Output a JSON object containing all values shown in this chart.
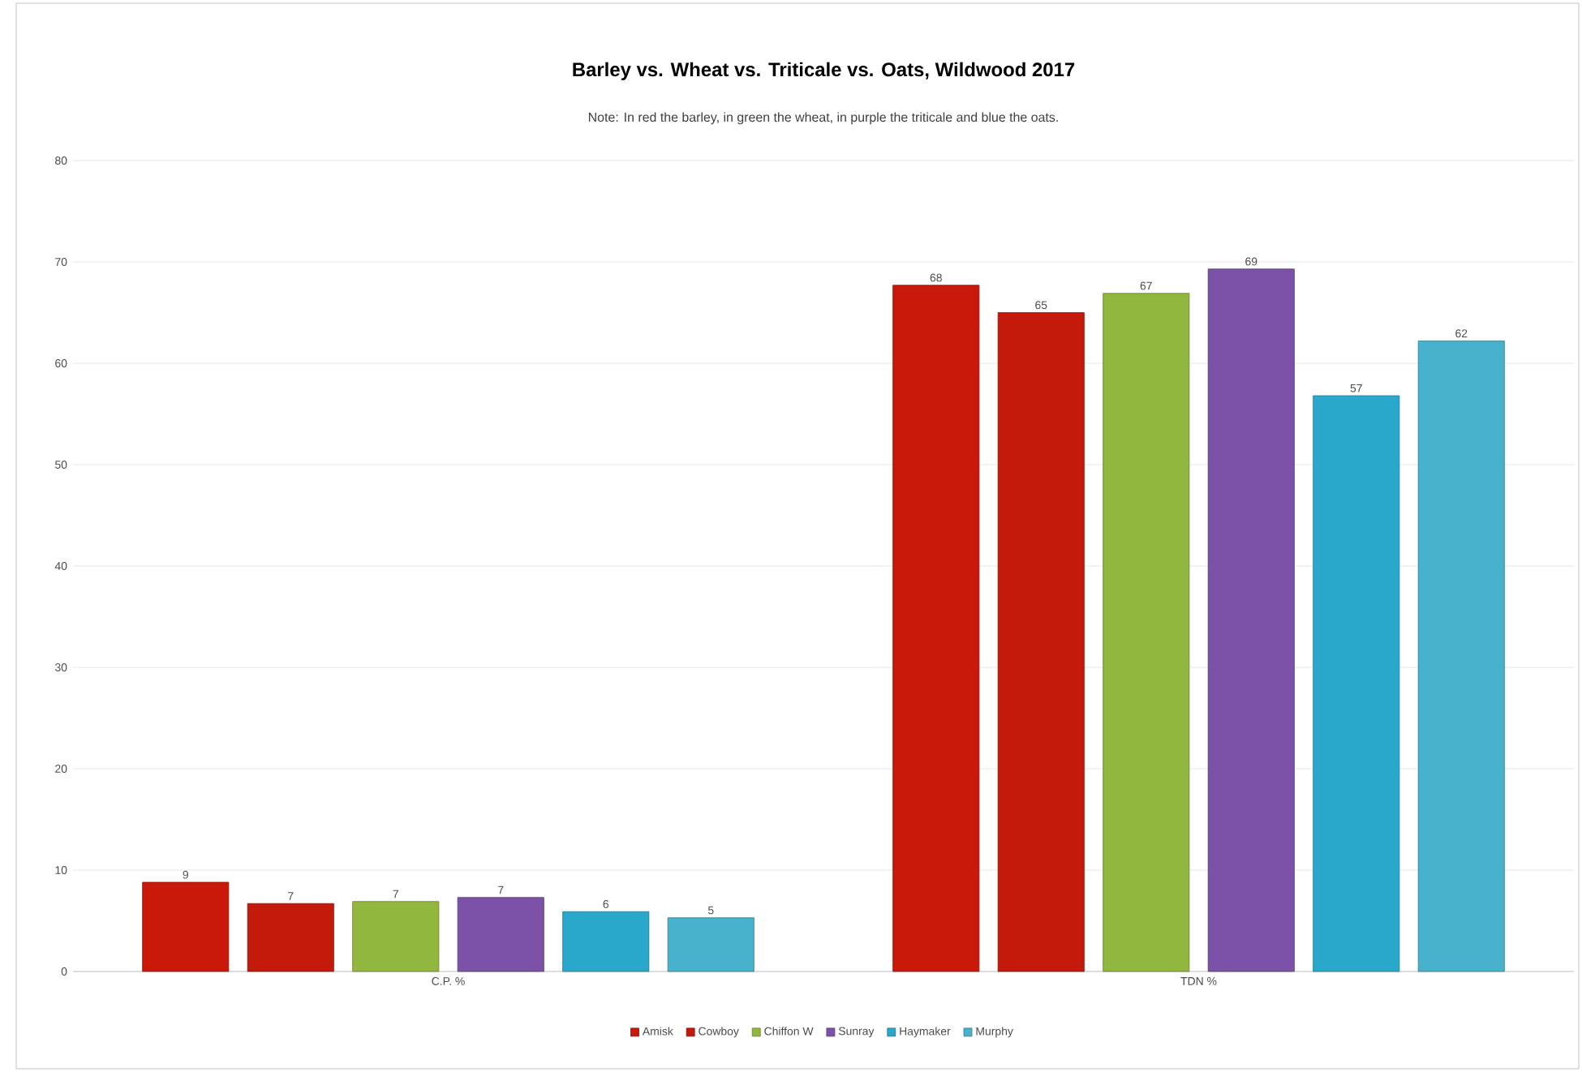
{
  "chart_data": {
    "type": "bar",
    "title": "Barley vs. Wheat vs. Triticale vs. Oats, Wildwood 2017",
    "subtitle": "Note: In red the barley, in green the wheat, in purple the triticale and blue the oats.",
    "categories": [
      "C.P. %",
      "TDN %"
    ],
    "series": [
      {
        "name": "Amisk",
        "color": "#c8190b",
        "values": [
          8.8,
          67.7
        ],
        "value_labels": [
          "9",
          "68"
        ]
      },
      {
        "name": "Cowboy",
        "color": "#c41a0c",
        "values": [
          6.7,
          65.0
        ],
        "value_labels": [
          "7",
          "65"
        ]
      },
      {
        "name": "Chiffon W",
        "color": "#92b73e",
        "values": [
          6.9,
          66.9
        ],
        "value_labels": [
          "7",
          "67"
        ]
      },
      {
        "name": "Sunray",
        "color": "#7b52a8",
        "values": [
          7.3,
          69.3
        ],
        "value_labels": [
          "7",
          "69"
        ]
      },
      {
        "name": "Haymaker",
        "color": "#2aa8cc",
        "values": [
          5.9,
          56.8
        ],
        "value_labels": [
          "6",
          "57"
        ]
      },
      {
        "name": "Murphy",
        "color": "#48b2cc",
        "values": [
          5.3,
          62.2
        ],
        "value_labels": [
          "5",
          "62"
        ]
      }
    ],
    "ylim": [
      0,
      80
    ],
    "yticks": [
      0,
      10,
      20,
      30,
      40,
      50,
      60,
      70,
      80
    ],
    "grid": "y",
    "legend": "bottom"
  }
}
